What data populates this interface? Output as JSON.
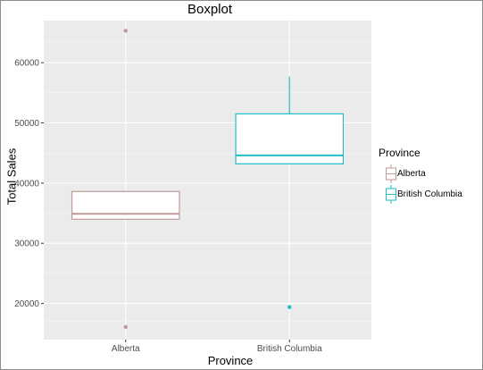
{
  "chart_data": {
    "type": "boxplot",
    "title": "Boxplot",
    "xlabel": "Province",
    "ylabel": "Total Sales",
    "ylim": [
      14000,
      67000
    ],
    "yticks": [
      20000,
      30000,
      40000,
      50000,
      60000
    ],
    "ytick_labels": [
      "20000",
      "30000",
      "40000",
      "50000",
      "60000"
    ],
    "grid": true,
    "legend": {
      "title": "Province",
      "position": "right"
    },
    "categories": [
      "Alberta",
      "British Columbia"
    ],
    "series": [
      {
        "name": "Alberta",
        "color": "#bc9a98",
        "min": 34000,
        "q1": 34000,
        "median": 34900,
        "q3": 38600,
        "max": 38600,
        "outliers": [
          65300,
          16100
        ]
      },
      {
        "name": "British Columbia",
        "color": "#1fbfc4",
        "min": 43200,
        "q1": 43200,
        "median": 44600,
        "q3": 51500,
        "max": 57700,
        "outliers": [
          19400
        ]
      }
    ]
  }
}
